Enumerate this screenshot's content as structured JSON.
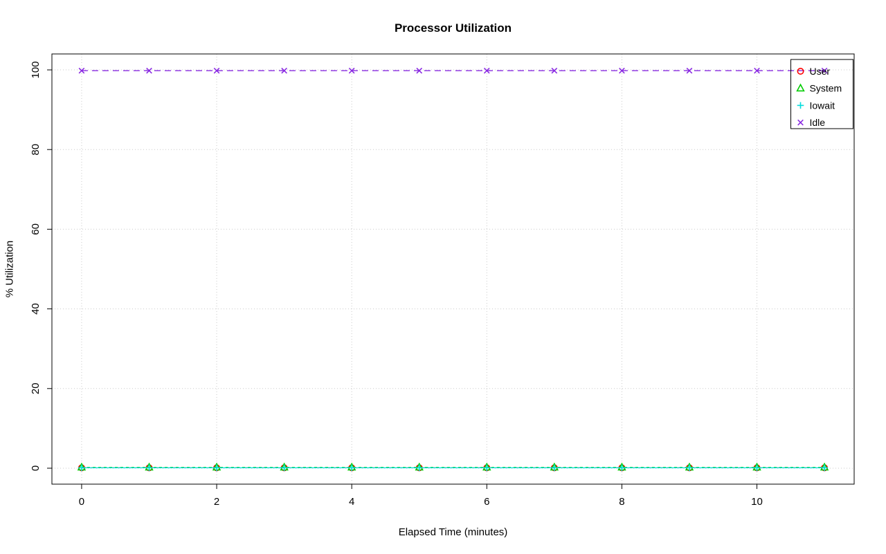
{
  "chart_data": {
    "type": "line",
    "title": "Processor Utilization",
    "xlabel": "Elapsed Time (minutes)",
    "ylabel": "% Utilization",
    "x": [
      0,
      1,
      2,
      3,
      4,
      5,
      6,
      7,
      8,
      9,
      10,
      11
    ],
    "x_ticks": [
      0,
      2,
      4,
      6,
      8,
      10
    ],
    "y_ticks": [
      0,
      20,
      40,
      60,
      80,
      100
    ],
    "xlim": [
      -0.44,
      11.44
    ],
    "ylim": [
      -4,
      104
    ],
    "grid": true,
    "legend_position": "top-right",
    "colors": {
      "grid": "#c9c9c9",
      "axis": "#000000",
      "text": "#000000",
      "background": "#ffffff"
    },
    "series": [
      {
        "name": "User",
        "color": "#ff0000",
        "marker": "circle",
        "dash": "8 5",
        "values": [
          0.1,
          0.1,
          0.1,
          0.1,
          0.1,
          0.1,
          0.1,
          0.1,
          0.1,
          0.1,
          0.1,
          0.1
        ]
      },
      {
        "name": "System",
        "color": "#00cc00",
        "marker": "triangle",
        "dash": "4 4",
        "values": [
          0.2,
          0.2,
          0.2,
          0.2,
          0.2,
          0.2,
          0.2,
          0.2,
          0.2,
          0.2,
          0.2,
          0.2
        ]
      },
      {
        "name": "Iowait",
        "color": "#00dddd",
        "marker": "plus",
        "dash": "",
        "values": [
          0.1,
          0.1,
          0.1,
          0.1,
          0.1,
          0.1,
          0.1,
          0.1,
          0.1,
          0.1,
          0.1,
          0.1
        ]
      },
      {
        "name": "Idle",
        "color": "#8a2be2",
        "marker": "x",
        "dash": "9 6",
        "values": [
          99.8,
          99.8,
          99.8,
          99.8,
          99.8,
          99.8,
          99.8,
          99.8,
          99.8,
          99.8,
          99.8,
          99.8
        ]
      }
    ]
  }
}
